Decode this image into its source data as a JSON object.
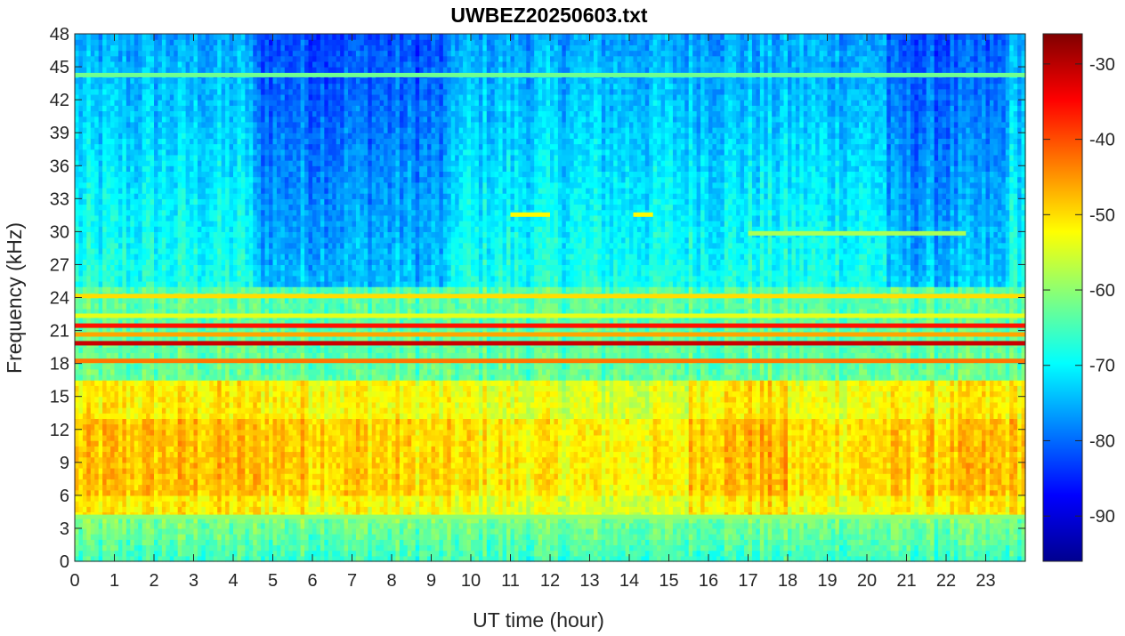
{
  "chart_data": {
    "type": "heatmap",
    "title": "UWBEZ20250603.txt",
    "xlabel": "UT time (hour)",
    "ylabel": "Frequency (kHz)",
    "xlim": [
      0,
      24
    ],
    "ylim": [
      0,
      48
    ],
    "x_ticks": [
      "0",
      "1",
      "2",
      "3",
      "4",
      "5",
      "6",
      "7",
      "8",
      "9",
      "10",
      "11",
      "12",
      "13",
      "14",
      "15",
      "16",
      "17",
      "18",
      "19",
      "20",
      "21",
      "22",
      "23"
    ],
    "y_ticks": [
      "0",
      "3",
      "6",
      "9",
      "12",
      "15",
      "18",
      "21",
      "24",
      "27",
      "30",
      "33",
      "36",
      "39",
      "42",
      "45",
      "48"
    ],
    "colorbar": {
      "colormap": "jet",
      "range": [
        -96,
        -26
      ],
      "ticks": [
        "-30",
        "-40",
        "-50",
        "-60",
        "-70",
        "-80",
        "-90"
      ]
    },
    "narrowband_lines": [
      {
        "freq": 19.8,
        "level": -31,
        "x": [
          0,
          24
        ]
      },
      {
        "freq": 21.4,
        "level": -36,
        "x": [
          0,
          24
        ]
      },
      {
        "freq": 18.2,
        "level": -43,
        "x": [
          0,
          24
        ]
      },
      {
        "freq": 24.1,
        "level": -50,
        "x": [
          0,
          24
        ]
      },
      {
        "freq": 22.3,
        "level": -54,
        "x": [
          0,
          24
        ]
      },
      {
        "freq": 20.6,
        "level": -46,
        "x": [
          0,
          24
        ]
      },
      {
        "freq": 44.2,
        "level": -62,
        "x": [
          0,
          24
        ]
      },
      {
        "freq": 4.0,
        "level": -60,
        "x": [
          0,
          24
        ]
      },
      {
        "freq": 29.8,
        "level": -58,
        "x": [
          17,
          22.5
        ]
      },
      {
        "freq": 31.5,
        "level": -52,
        "x": [
          11,
          12
        ]
      },
      {
        "freq": 31.5,
        "level": -52,
        "x": [
          14.1,
          14.6
        ]
      }
    ],
    "broadband_region": {
      "freq_range": [
        4,
        16
      ],
      "level_range": [
        -52,
        -40
      ],
      "strongest_hours": [
        15.5,
        18
      ]
    }
  }
}
